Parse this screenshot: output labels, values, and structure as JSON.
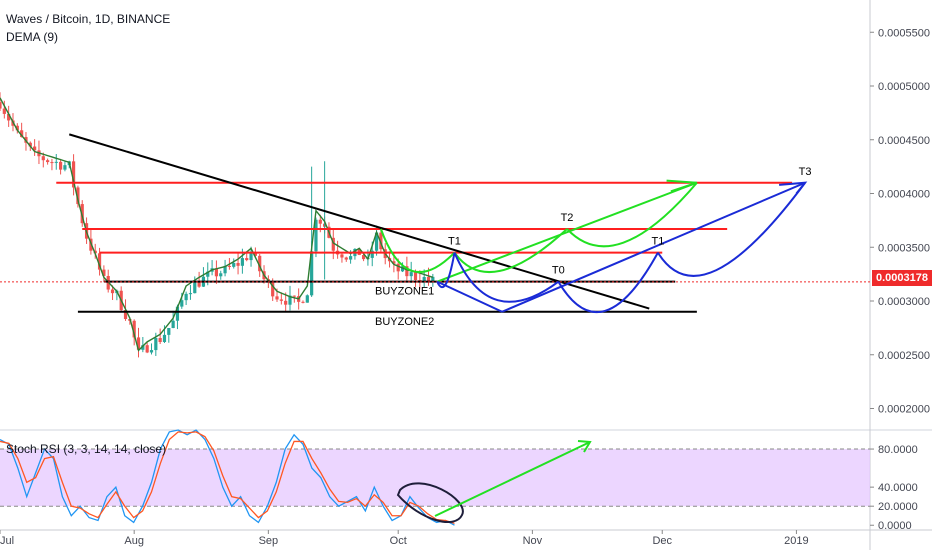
{
  "legend": {
    "symbol": "Waves / Bitcoin, 1D, BINANCE",
    "indicator": "DEMA (9)"
  },
  "rsi_legend": "Stoch RSI (3, 3, 14, 14, close)",
  "current_price_label": "0.0003178",
  "colors": {
    "bull": "#26a69a",
    "bear": "#ef5350",
    "dema": "#2e7d32",
    "resistance": "#ff1f1f",
    "support": "#000000",
    "projection_green": "#22e022",
    "projection_blue": "#1a2bd6",
    "rsi_k": "#2196f3",
    "rsi_d": "#ff5722",
    "rsi_band": "#e6c8ff",
    "current_price_line": "#ef2b2b"
  },
  "chart_data": [
    {
      "type": "candlestick",
      "title": "Waves / Bitcoin, 1D, BINANCE",
      "ylim": [
        0.00018,
        0.00058
      ],
      "y_ticks": [
        "0.0002000",
        "0.0002500",
        "0.0003000",
        "0.0003500",
        "0.0004000",
        "0.0004500",
        "0.0005000",
        "0.0005500"
      ],
      "x_ticks": [
        "Jul",
        "Aug",
        "Sep",
        "Oct",
        "Nov",
        "Dec",
        "2019"
      ],
      "close_path": [
        [
          "2018-07-01",
          0.000485
        ],
        [
          "2018-07-05",
          0.000455
        ],
        [
          "2018-07-09",
          0.000435
        ],
        [
          "2018-07-13",
          0.00043
        ],
        [
          "2018-07-17",
          0.000425
        ],
        [
          "2018-07-19",
          0.00039
        ],
        [
          "2018-07-21",
          0.00036
        ],
        [
          "2018-07-23",
          0.00034
        ],
        [
          "2018-07-25",
          0.000318
        ],
        [
          "2018-07-28",
          0.000305
        ],
        [
          "2018-07-31",
          0.00028
        ],
        [
          "2018-08-02",
          0.00025
        ],
        [
          "2018-08-04",
          0.000258
        ],
        [
          "2018-08-07",
          0.000265
        ],
        [
          "2018-08-10",
          0.00028
        ],
        [
          "2018-08-13",
          0.00031
        ],
        [
          "2018-08-16",
          0.000318
        ],
        [
          "2018-08-19",
          0.000325
        ],
        [
          "2018-08-22",
          0.000328
        ],
        [
          "2018-08-25",
          0.000335
        ],
        [
          "2018-08-28",
          0.000345
        ],
        [
          "2018-08-31",
          0.00032
        ],
        [
          "2018-09-03",
          0.000305
        ],
        [
          "2018-09-06",
          0.0003
        ],
        [
          "2018-09-08",
          0.000298
        ],
        [
          "2018-09-10",
          0.00031
        ],
        [
          "2018-09-12",
          0.00038
        ],
        [
          "2018-09-14",
          0.00037
        ],
        [
          "2018-09-16",
          0.00035
        ],
        [
          "2018-09-18",
          0.000345
        ],
        [
          "2018-09-20",
          0.00034
        ],
        [
          "2018-09-22",
          0.000345
        ],
        [
          "2018-09-24",
          0.000335
        ],
        [
          "2018-09-26",
          0.00036
        ],
        [
          "2018-09-28",
          0.00034
        ],
        [
          "2018-09-30",
          0.00033
        ],
        [
          "2018-10-03",
          0.000325
        ],
        [
          "2018-10-06",
          0.000322
        ],
        [
          "2018-10-09",
          0.000318
        ]
      ],
      "current_price": 0.0003178,
      "annotations": {
        "trendline": [
          [
            "2018-07-17",
            0.000455
          ],
          [
            "2018-11-28",
            0.000293
          ]
        ],
        "resistance_lines": [
          {
            "from": "2018-07-14",
            "to": "2018-12-31",
            "y": 0.00041
          },
          {
            "from": "2018-07-20",
            "to": "2018-12-16",
            "y": 0.000367
          },
          {
            "from": "2018-07-24",
            "to": "2018-12-01",
            "y": 0.000345
          }
        ],
        "support_lines": [
          {
            "from": "2018-07-25",
            "to": "2018-12-04",
            "y": 0.000318,
            "label": "BUYZONE1"
          },
          {
            "from": "2018-07-19",
            "to": "2018-12-09",
            "y": 0.00029,
            "label": "BUYZONE2"
          }
        ],
        "targets": [
          {
            "label": "T1",
            "x": "2018-10-14",
            "y": 0.000345
          },
          {
            "label": "T2",
            "x": "2018-11-09",
            "y": 0.000367
          },
          {
            "label": "T0",
            "x": "2018-11-07",
            "y": 0.000318
          },
          {
            "label": "T1",
            "x": "2018-11-30",
            "y": 0.000345
          },
          {
            "label": "T3",
            "x": "2019-01-03",
            "y": 0.00041
          }
        ]
      }
    },
    {
      "type": "line",
      "title": "Stoch RSI (3, 3, 14, 14, close)",
      "ylim": [
        -5,
        100
      ],
      "y_ticks": [
        "0.0000",
        "20.0000",
        "40.0000",
        "80.0000"
      ],
      "band": [
        20,
        80
      ],
      "series": [
        {
          "values_k": [
            90,
            85,
            60,
            30,
            55,
            80,
            70,
            30,
            10,
            20,
            8,
            5,
            30,
            40,
            10,
            3,
            20,
            45,
            80,
            98,
            100,
            95,
            100,
            90,
            70,
            40,
            20,
            30,
            10,
            3,
            20,
            45,
            80,
            95,
            85,
            60,
            50,
            30,
            20,
            25,
            30,
            15,
            40,
            20,
            5,
            10,
            30,
            18,
            8,
            3,
            5,
            0
          ]
        },
        {
          "values_d": [
            88,
            86,
            70,
            45,
            50,
            70,
            72,
            45,
            20,
            18,
            12,
            8,
            22,
            35,
            20,
            8,
            15,
            35,
            65,
            90,
            98,
            97,
            98,
            93,
            78,
            52,
            30,
            28,
            18,
            8,
            15,
            35,
            65,
            88,
            88,
            70,
            55,
            38,
            25,
            24,
            28,
            20,
            32,
            24,
            10,
            10,
            24,
            20,
            12,
            6,
            5,
            2
          ]
        }
      ]
    }
  ],
  "annotation_labels": {
    "buyzone1": "BUYZONE1",
    "buyzone2": "BUYZONE2"
  }
}
